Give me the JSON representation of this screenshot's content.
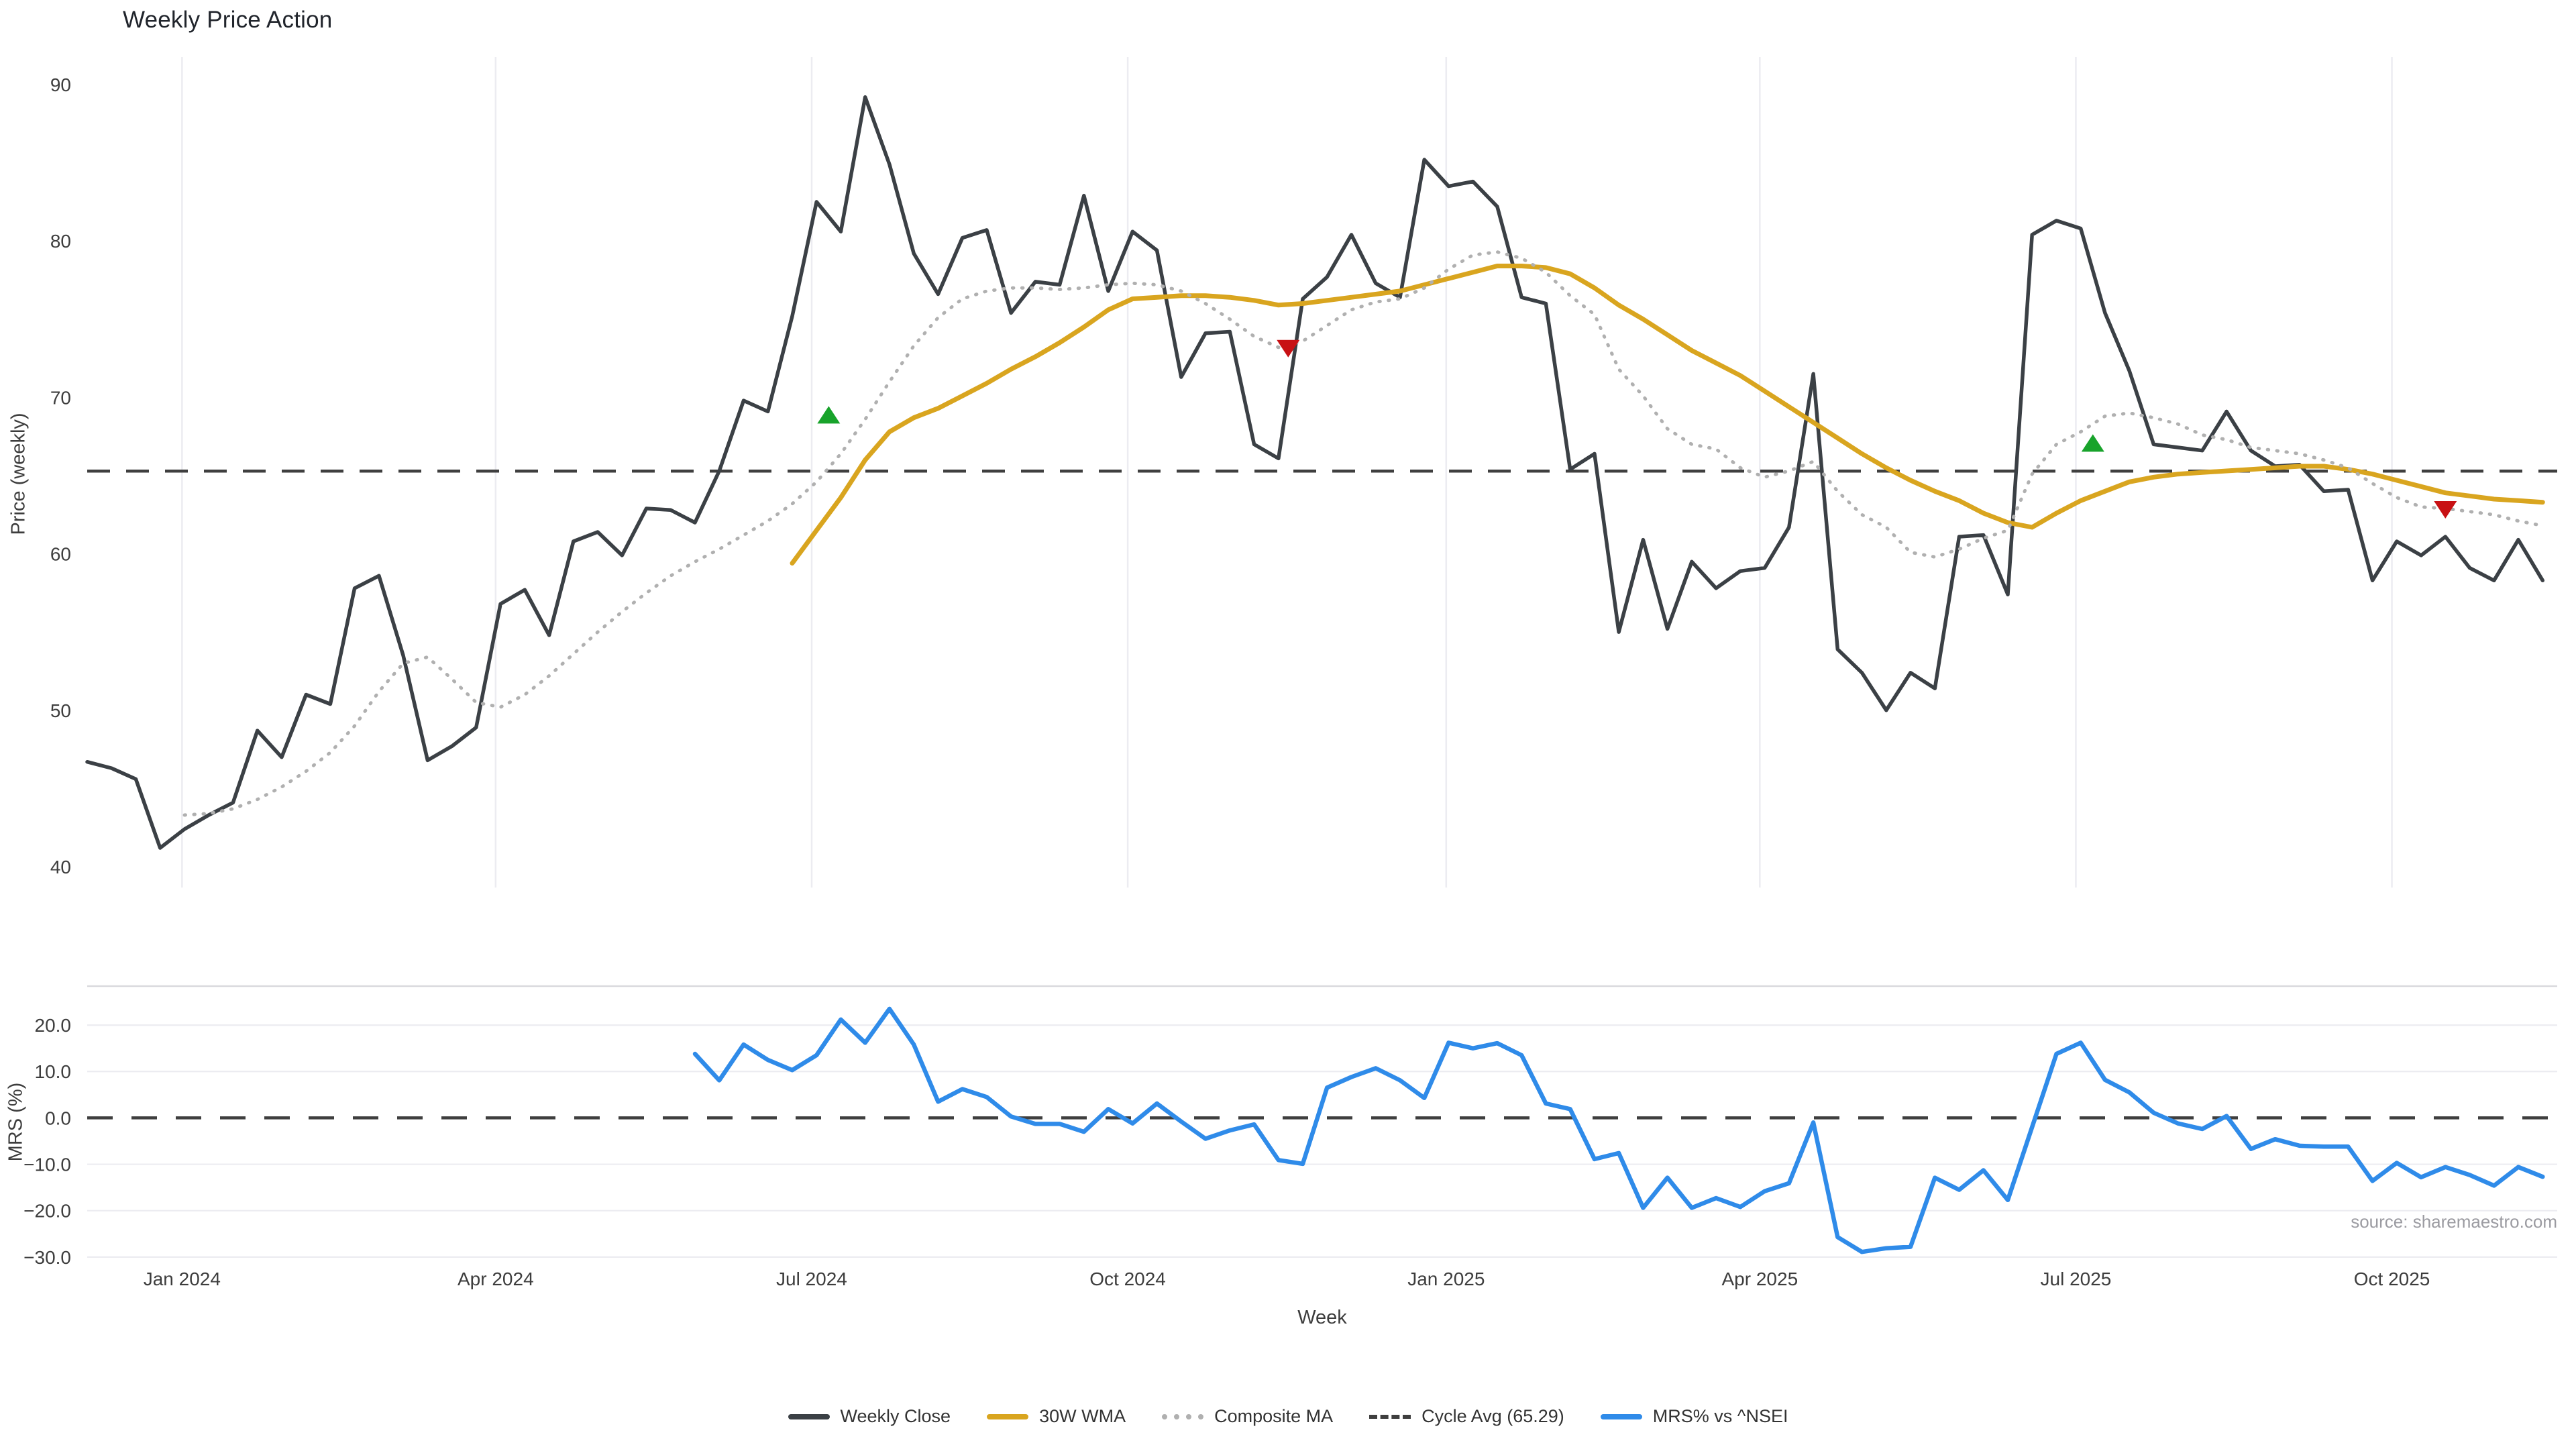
{
  "title": "Weekly Price Action",
  "source_note": "source: sharemaestro.com",
  "chart_data": {
    "type": "line",
    "title": "Weekly Price Action",
    "xlabel": "Week",
    "x_is_weekly_index": true,
    "x_range_weeks": [
      0,
      101.6
    ],
    "x_ticks": [
      {
        "week": 3.9,
        "label": "Jan 2024"
      },
      {
        "week": 16.8,
        "label": "Apr 2024"
      },
      {
        "week": 29.8,
        "label": "Jul 2024"
      },
      {
        "week": 42.8,
        "label": "Oct 2024"
      },
      {
        "week": 55.9,
        "label": "Jan 2025"
      },
      {
        "week": 68.8,
        "label": "Apr 2025"
      },
      {
        "week": 81.8,
        "label": "Jul 2025"
      },
      {
        "week": 94.8,
        "label": "Oct 2025"
      }
    ],
    "panels": [
      {
        "name": "price",
        "ylabel": "Price (weekly)",
        "ylim": [
          38.67,
          91.76
        ],
        "yticks": [
          {
            "v": 90,
            "label": "90"
          },
          {
            "v": 80,
            "label": "80"
          },
          {
            "v": 70,
            "label": "70"
          },
          {
            "v": 60,
            "label": "60"
          },
          {
            "v": 50,
            "label": "50"
          },
          {
            "v": 40,
            "label": "40"
          }
        ],
        "grid": "vertical",
        "reference_line": {
          "name": "Cycle Avg",
          "value": 65.29,
          "style": "dashed",
          "color": "#3f3f3f"
        },
        "series": [
          {
            "name": "Weekly Close",
            "color": "#3b4045",
            "style": "solid",
            "width": 5.5,
            "start_week": 0,
            "values": [
              46.7,
              46.3,
              45.6,
              41.2,
              42.4,
              43.3,
              44.1,
              48.7,
              47.0,
              51.0,
              50.4,
              57.8,
              58.6,
              53.5,
              46.8,
              47.7,
              48.9,
              56.8,
              57.7,
              54.8,
              60.8,
              61.4,
              59.9,
              62.9,
              62.8,
              62.0,
              65.3,
              69.8,
              69.1,
              75.2,
              82.5,
              80.6,
              89.2,
              84.9,
              79.2,
              76.6,
              80.2,
              80.7,
              75.4,
              77.4,
              77.2,
              82.9,
              76.8,
              80.6,
              79.4,
              71.3,
              74.1,
              74.2,
              67.0,
              66.1,
              76.3,
              77.7,
              80.4,
              77.3,
              76.4,
              85.2,
              83.5,
              83.8,
              82.2,
              76.4,
              76.0,
              65.4,
              66.4,
              55.0,
              60.9,
              55.2,
              59.5,
              57.8,
              58.9,
              59.1,
              61.7,
              71.5,
              53.9,
              52.4,
              50.0,
              52.4,
              51.4,
              61.1,
              61.2,
              57.4,
              80.4,
              81.3,
              80.8,
              75.4,
              71.7,
              67.0,
              66.8,
              66.6,
              69.1,
              66.6,
              65.6,
              65.7,
              64.0,
              64.1,
              58.3,
              60.8,
              59.9,
              61.1,
              59.1,
              58.3,
              60.9,
              58.3
            ]
          },
          {
            "name": "30W WMA",
            "color": "#d9a51f",
            "style": "solid",
            "width": 7,
            "start_week": 29,
            "values": [
              59.4,
              61.5,
              63.6,
              66.0,
              67.8,
              68.7,
              69.3,
              70.1,
              70.9,
              71.8,
              72.6,
              73.5,
              74.5,
              75.6,
              76.3,
              76.4,
              76.5,
              76.5,
              76.4,
              76.2,
              75.9,
              76.0,
              76.2,
              76.4,
              76.6,
              76.8,
              77.2,
              77.6,
              78.0,
              78.4,
              78.4,
              78.3,
              77.9,
              77.0,
              75.9,
              75.0,
              74.0,
              73.0,
              72.2,
              71.4,
              70.4,
              69.4,
              68.4,
              67.4,
              66.4,
              65.5,
              64.7,
              64.0,
              63.4,
              62.6,
              62.0,
              61.7,
              62.6,
              63.4,
              64.0,
              64.6,
              64.9,
              65.1,
              65.2,
              65.3,
              65.4,
              65.5,
              65.6,
              65.6,
              65.4,
              65.1,
              64.7,
              64.3,
              63.9,
              63.7,
              63.5,
              63.4,
              63.3
            ]
          },
          {
            "name": "Composite MA",
            "color": "#b0b0b0",
            "style": "dotted",
            "width": 5,
            "start_week": 4,
            "values": [
              43.3,
              43.4,
              43.7,
              44.3,
              45.1,
              46.1,
              47.3,
              49.0,
              51.2,
              53.0,
              53.4,
              52.0,
              50.5,
              50.2,
              51.0,
              52.2,
              53.6,
              55.0,
              56.3,
              57.5,
              58.6,
              59.5,
              60.3,
              61.2,
              62.1,
              63.2,
              64.6,
              66.4,
              68.6,
              71.0,
              73.3,
              75.1,
              76.3,
              76.8,
              77.0,
              77.0,
              76.9,
              77.0,
              77.2,
              77.3,
              77.2,
              76.8,
              76.0,
              75.0,
              73.9,
              73.2,
              73.6,
              74.6,
              75.6,
              76.1,
              76.3,
              77.0,
              78.2,
              79.1,
              79.3,
              78.9,
              78.0,
              76.5,
              75.3,
              71.8,
              70.1,
              68.0,
              67.0,
              66.7,
              65.5,
              64.9,
              65.3,
              65.9,
              64.0,
              62.5,
              61.7,
              60.1,
              59.8,
              60.3,
              61.0,
              61.5,
              65.1,
              67.0,
              67.8,
              68.8,
              69.0,
              68.7,
              68.3,
              67.6,
              67.3,
              66.8,
              66.6,
              66.4,
              66.0,
              65.5,
              64.5,
              63.6,
              63.0,
              62.9,
              62.7,
              62.5,
              62.1,
              61.8
            ]
          }
        ],
        "markers": [
          {
            "signal": "buy",
            "week": 30.5,
            "price": 68.8,
            "color": "#18a32b"
          },
          {
            "signal": "sell",
            "week": 49.4,
            "price": 73.2,
            "color": "#c81114"
          },
          {
            "signal": "buy",
            "week": 82.5,
            "price": 67.0,
            "color": "#18a32b"
          },
          {
            "signal": "sell",
            "week": 97.0,
            "price": 62.9,
            "color": "#c81114"
          }
        ]
      },
      {
        "name": "mrs",
        "ylabel": "MRS (%)",
        "ylim": [
          -30.6,
          28.4
        ],
        "yticks": [
          {
            "v": 20,
            "label": "20.0"
          },
          {
            "v": 10,
            "label": "10.0"
          },
          {
            "v": 0,
            "label": "0.0"
          },
          {
            "v": -10,
            "label": "−10.0"
          },
          {
            "v": -20,
            "label": "−20.0"
          },
          {
            "v": -30,
            "label": "−30.0"
          }
        ],
        "grid": "horizontal",
        "zero_line": {
          "style": "dashed",
          "color": "#3f3f3f"
        },
        "series": [
          {
            "name": "MRS% vs ^NSEI",
            "color": "#2f8be9",
            "style": "solid",
            "width": 6.5,
            "start_week": 25,
            "values": [
              13.8,
              8.1,
              15.8,
              12.5,
              10.3,
              13.5,
              21.2,
              16.2,
              23.5,
              15.8,
              3.5,
              6.2,
              4.5,
              0.3,
              -1.3,
              -1.3,
              -3.0,
              1.9,
              -1.2,
              3.1,
              -0.8,
              -4.5,
              -2.7,
              -1.4,
              -9.1,
              -9.9,
              6.5,
              8.8,
              10.7,
              8.1,
              4.3,
              16.2,
              15.0,
              16.1,
              13.5,
              3.1,
              1.9,
              -8.9,
              -7.6,
              -19.4,
              -12.9,
              -19.4,
              -17.3,
              -19.2,
              -15.8,
              -14.1,
              -1.0,
              -25.7,
              -28.9,
              -28.1,
              -27.8,
              -12.9,
              -15.5,
              -11.3,
              -17.7,
              -2.0,
              13.8,
              16.2,
              8.2,
              5.5,
              1.1,
              -1.2,
              -2.4,
              0.4,
              -6.7,
              -4.6,
              -6.0,
              -6.2,
              -6.2,
              -13.6,
              -9.7,
              -12.8,
              -10.6,
              -12.3,
              -14.6,
              -10.6,
              -12.7
            ]
          }
        ]
      }
    ],
    "legend": [
      {
        "label": "Weekly Close",
        "color": "#3b4045",
        "style": "solid"
      },
      {
        "label": "30W WMA",
        "color": "#d9a51f",
        "style": "solid"
      },
      {
        "label": "Composite MA",
        "color": "#b0b0b0",
        "style": "dotted"
      },
      {
        "label": "Cycle Avg (65.29)",
        "color": "#3f3f3f",
        "style": "dashed"
      },
      {
        "label": "MRS% vs ^NSEI",
        "color": "#2f8be9",
        "style": "solid"
      }
    ],
    "source": "source: sharemaestro.com",
    "colors": {
      "background": "#ffffff",
      "gridline": "#ececf1",
      "panel_divider": "#d9d9de",
      "tick_text": "#3d3d3d",
      "title_text": "#21252c",
      "source_text": "#9b9ba1"
    }
  }
}
